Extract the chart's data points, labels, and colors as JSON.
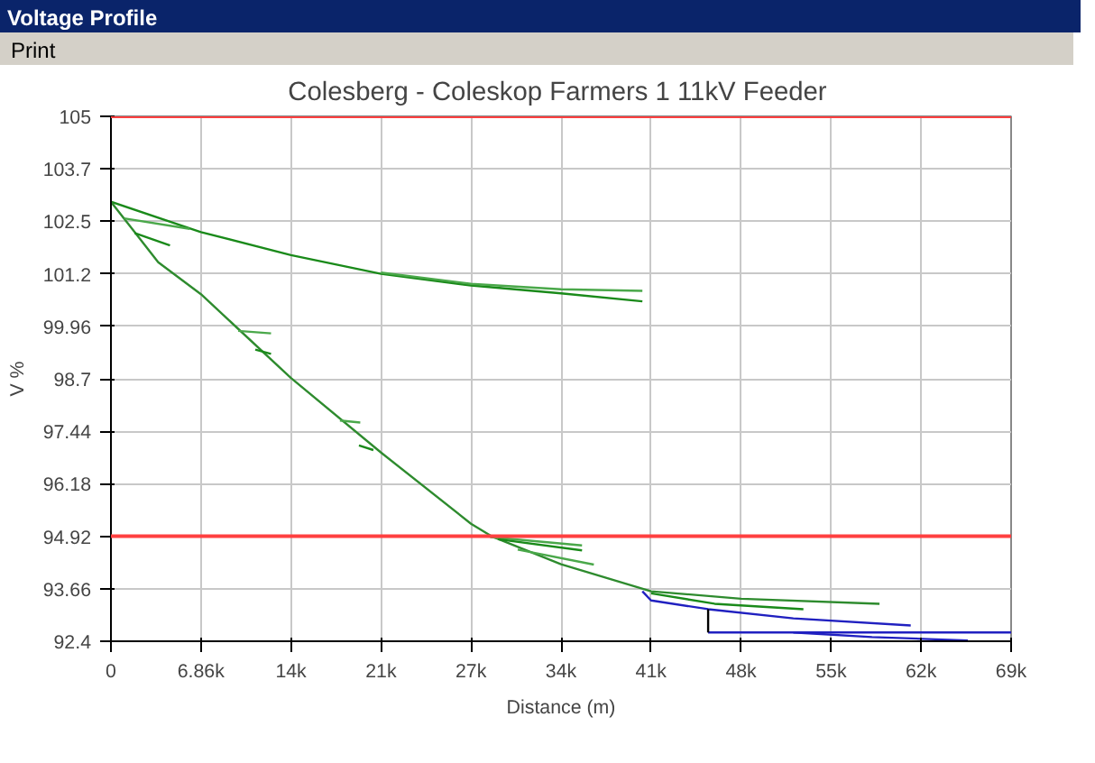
{
  "chart_data": {
    "type": "line",
    "title": "Colesberg - Coleskop Farmers 1  11kV Feeder",
    "xlabel": "Distance (m)",
    "ylabel": "V %",
    "annotations": [
      "Voltage Profile",
      "Print"
    ],
    "xlim": [
      0,
      68600
    ],
    "ylim": [
      92.4,
      105
    ],
    "xticks": [
      0,
      {
        "value": 6860,
        "label": "6.86k"
      },
      {
        "value": 13720,
        "label": "14k"
      },
      {
        "value": 20580,
        "label": "21k"
      },
      {
        "value": 27440,
        "label": "27k"
      },
      {
        "value": 34300,
        "label": "34k"
      },
      {
        "value": 41160,
        "label": "41k"
      },
      {
        "value": 48020,
        "label": "48k"
      },
      {
        "value": 54880,
        "label": "55k"
      },
      {
        "value": 61740,
        "label": "62k"
      },
      {
        "value": 68600,
        "label": "69k"
      }
    ],
    "yticks": [
      92.4,
      93.66,
      94.92,
      96.18,
      97.44,
      98.7,
      99.96,
      {
        "value": 101.22,
        "label": "101.2"
      },
      {
        "value": 102.48,
        "label": "102.5"
      },
      {
        "value": 103.74,
        "label": "103.7"
      },
      105
    ],
    "grid": true,
    "line_style": "solid",
    "marker": "none",
    "ref_lines": [
      {
        "axis": "y",
        "value": 105,
        "color": "#ff4040"
      },
      {
        "axis": "y",
        "value": 94.92,
        "color": "#ff4040"
      }
    ],
    "series": [
      {
        "color": "#1a8a1a",
        "x": [
          0,
          6860,
          13720,
          20580,
          27440,
          34300,
          40500
        ],
        "values": [
          102.95,
          102.22,
          101.67,
          101.22,
          100.94,
          100.75,
          100.56
        ]
      },
      {
        "color": "#4aa84a",
        "x": [
          20580,
          27440,
          34300,
          40500
        ],
        "values": [
          101.25,
          100.98,
          100.85,
          100.81
        ]
      },
      {
        "color": "#2e8b2e",
        "x": [
          0,
          3600,
          6860,
          13720,
          20580,
          27440,
          29000,
          34300,
          41160,
          48020,
          58570
        ],
        "values": [
          102.95,
          101.5,
          100.73,
          98.72,
          96.93,
          95.22,
          94.92,
          94.25,
          93.6,
          93.42,
          93.3
        ]
      },
      {
        "color": "#1a8a1a",
        "x": [
          41160,
          46000,
          52770
        ],
        "values": [
          93.55,
          93.3,
          93.17
        ]
      },
      {
        "color": "#2020c0",
        "x": [
          40500,
          41160,
          45510,
          52000,
          60950
        ],
        "values": [
          93.6,
          93.38,
          93.17,
          92.95,
          92.78
        ]
      },
      {
        "color": "#2020c0",
        "x": [
          45510,
          55000,
          68600
        ],
        "values": [
          92.61,
          92.61,
          92.61
        ]
      },
      {
        "color": "#2020c0",
        "x": [
          52000,
          58000,
          65300
        ],
        "values": [
          92.61,
          92.5,
          92.42
        ]
      },
      {
        "color": "#000000",
        "x": [
          45510,
          45510
        ],
        "values": [
          93.17,
          92.61
        ]
      },
      {
        "color": "#4aa84a",
        "x": [
          28900,
          35900
        ],
        "values": [
          94.9,
          94.7
        ]
      },
      {
        "color": "#1a8a1a",
        "x": [
          29500,
          35900
        ],
        "values": [
          94.85,
          94.58
        ]
      },
      {
        "color": "#4aa84a",
        "x": [
          31000,
          36800
        ],
        "values": [
          94.6,
          94.24
        ]
      },
      {
        "color": "#4aa84a",
        "x": [
          1000,
          6000
        ],
        "values": [
          102.55,
          102.3
        ]
      },
      {
        "color": "#1a8a1a",
        "x": [
          1800,
          4500
        ],
        "values": [
          102.2,
          101.9
        ]
      },
      {
        "color": "#4aa84a",
        "x": [
          9700,
          12200
        ],
        "values": [
          99.85,
          99.79
        ]
      },
      {
        "color": "#1a8a1a",
        "x": [
          11000,
          12200
        ],
        "values": [
          99.4,
          99.3
        ]
      },
      {
        "color": "#4aa84a",
        "x": [
          17450,
          19000
        ],
        "values": [
          97.7,
          97.65
        ]
      },
      {
        "color": "#1a8a1a",
        "x": [
          18900,
          20000
        ],
        "values": [
          97.1,
          96.99
        ]
      }
    ]
  }
}
